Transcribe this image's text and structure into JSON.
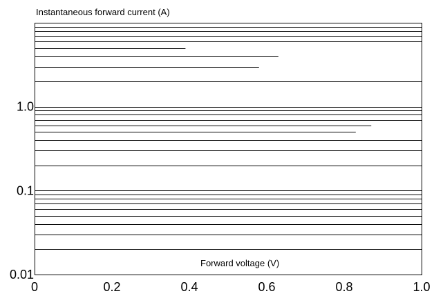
{
  "chart_data": {
    "type": "line",
    "title": "",
    "ylabel": "Instantaneous forward current (A)",
    "xlabel": "Forward voltage (V)",
    "x_scale": "linear",
    "y_scale": "log",
    "xlim": [
      0,
      1.0
    ],
    "ylim": [
      0.01,
      10
    ],
    "x_ticks": [
      "0",
      "0.2",
      "0.4",
      "0.6",
      "0.8",
      "1.0"
    ],
    "y_ticks": [
      "0.01",
      "0.1",
      "1.0"
    ],
    "grid": true,
    "series": [],
    "partial_gridlines": [
      {
        "y": 5,
        "x_end": 0.39
      },
      {
        "y": 4,
        "x_end": 0.63
      },
      {
        "y": 3,
        "x_end": 0.58
      },
      {
        "y": 0.6,
        "x_end": 0.87
      },
      {
        "y": 0.5,
        "x_end": 0.83
      }
    ]
  }
}
